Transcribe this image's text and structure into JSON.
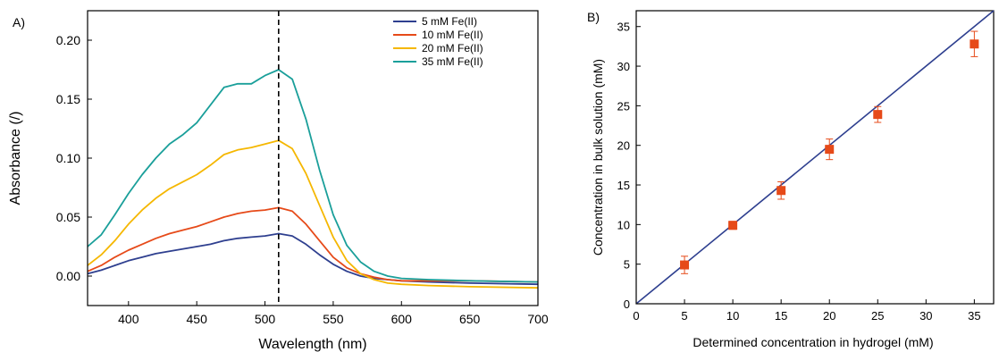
{
  "chart_data": [
    {
      "type": "line",
      "panel_label": "A)",
      "xlabel": "Wavelength (nm)",
      "ylabel": "Absorbance (/)",
      "xlim": [
        370,
        700
      ],
      "ylim": [
        -0.025,
        0.225
      ],
      "xticks": [
        400,
        450,
        500,
        550,
        600,
        650,
        700
      ],
      "xtick_labels": [
        "400",
        "450",
        "500",
        "550",
        "600",
        "650",
        "700"
      ],
      "yticks": [
        0.0,
        0.05,
        0.1,
        0.15,
        0.2
      ],
      "ytick_labels": [
        "0.00",
        "0.05",
        "0.10",
        "0.15",
        "0.20"
      ],
      "grid": false,
      "legend_position": "top-right",
      "vline": {
        "x": 510,
        "style": "dashed",
        "color": "#000000"
      },
      "x": [
        370,
        380,
        390,
        400,
        410,
        420,
        430,
        440,
        450,
        460,
        470,
        480,
        490,
        500,
        510,
        520,
        530,
        540,
        550,
        560,
        570,
        580,
        590,
        600,
        620,
        650,
        700
      ],
      "series": [
        {
          "name": "5 mM Fe(II)",
          "color": "#2e3f8f",
          "values": [
            0.002,
            0.005,
            0.009,
            0.013,
            0.016,
            0.019,
            0.021,
            0.023,
            0.025,
            0.027,
            0.03,
            0.032,
            0.033,
            0.034,
            0.036,
            0.034,
            0.027,
            0.018,
            0.01,
            0.004,
            0.0,
            -0.002,
            -0.003,
            -0.004,
            -0.005,
            -0.006,
            -0.007
          ]
        },
        {
          "name": "10 mM Fe(II)",
          "color": "#e64a19",
          "values": [
            0.004,
            0.009,
            0.016,
            0.022,
            0.027,
            0.032,
            0.036,
            0.039,
            0.042,
            0.046,
            0.05,
            0.053,
            0.055,
            0.056,
            0.058,
            0.055,
            0.044,
            0.03,
            0.016,
            0.007,
            0.002,
            -0.001,
            -0.003,
            -0.004,
            -0.004,
            -0.004,
            -0.005
          ]
        },
        {
          "name": "20 mM Fe(II)",
          "color": "#f5b700",
          "values": [
            0.009,
            0.018,
            0.03,
            0.044,
            0.056,
            0.066,
            0.074,
            0.08,
            0.086,
            0.094,
            0.103,
            0.107,
            0.109,
            0.112,
            0.115,
            0.108,
            0.087,
            0.06,
            0.033,
            0.013,
            0.002,
            -0.003,
            -0.006,
            -0.007,
            -0.008,
            -0.009,
            -0.01
          ]
        },
        {
          "name": "35 mM Fe(II)",
          "color": "#1a9f9a",
          "values": [
            0.025,
            0.035,
            0.052,
            0.07,
            0.086,
            0.1,
            0.112,
            0.12,
            0.13,
            0.145,
            0.16,
            0.163,
            0.163,
            0.17,
            0.175,
            0.167,
            0.133,
            0.09,
            0.052,
            0.026,
            0.012,
            0.004,
            0.0,
            -0.002,
            -0.003,
            -0.004,
            -0.005
          ]
        }
      ]
    },
    {
      "type": "scatter",
      "panel_label": "B)",
      "xlabel": "Determined concentration in hydrogel (mM)",
      "ylabel": "Concentration in bulk solution (mM)",
      "xlim": [
        0,
        37
      ],
      "ylim": [
        0,
        37
      ],
      "xticks": [
        0,
        5,
        10,
        15,
        20,
        25,
        30,
        35
      ],
      "xtick_labels": [
        "0",
        "5",
        "10",
        "15",
        "20",
        "25",
        "30",
        "35"
      ],
      "yticks": [
        0,
        5,
        10,
        15,
        20,
        25,
        30,
        35
      ],
      "ytick_labels": [
        "0",
        "5",
        "10",
        "15",
        "20",
        "25",
        "30",
        "35"
      ],
      "grid": false,
      "points": {
        "color": "#e64a19",
        "x": [
          5,
          10,
          15,
          20,
          25,
          35
        ],
        "y": [
          4.9,
          9.9,
          14.3,
          19.5,
          23.9,
          32.8
        ],
        "error": [
          1.1,
          0.5,
          1.1,
          1.3,
          1.0,
          1.6
        ]
      },
      "fit_line": {
        "color": "#2e3f8f",
        "x": [
          0,
          37
        ],
        "y": [
          0,
          37
        ]
      }
    }
  ]
}
